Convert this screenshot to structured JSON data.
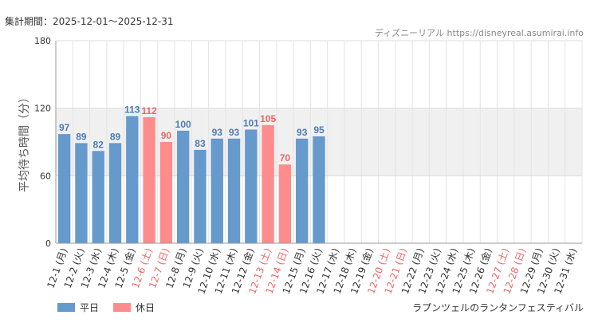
{
  "header": {
    "period": "集計期間：2025-12-01～2025-12-31",
    "source": "ディズニーリアル https://disneyreal.asumirai.info"
  },
  "footer": {
    "label": "ラプンツェルのランタンフェスティバル"
  },
  "legend": {
    "weekday": "平日",
    "holiday": "休日"
  },
  "colors": {
    "weekday": "#6699cc",
    "holiday": "#ff8c8c",
    "weekday_text": "#4a7cb5",
    "holiday_text": "#ee6666",
    "band": "#f0f0f0"
  },
  "chart_data": {
    "type": "bar",
    "ylabel": "平均待ち時間（分）",
    "ylim": [
      0,
      180
    ],
    "yticks": [
      0,
      60,
      120,
      180
    ],
    "shaded_band": [
      60,
      120
    ],
    "categories": [
      "12-1 (月)",
      "12-2 (火)",
      "12-3 (水)",
      "12-4 (木)",
      "12-5 (金)",
      "12-6 (土)",
      "12-7 (日)",
      "12-8 (月)",
      "12-9 (火)",
      "12-10 (水)",
      "12-11 (木)",
      "12-12 (金)",
      "12-13 (土)",
      "12-14 (日)",
      "12-15 (月)",
      "12-16 (火)",
      "12-17 (水)",
      "12-18 (木)",
      "12-19 (金)",
      "12-20 (土)",
      "12-21 (日)",
      "12-22 (月)",
      "12-23 (火)",
      "12-24 (水)",
      "12-25 (木)",
      "12-26 (金)",
      "12-27 (土)",
      "12-28 (日)",
      "12-29 (月)",
      "12-30 (火)",
      "12-31 (水)"
    ],
    "holiday": [
      false,
      false,
      false,
      false,
      false,
      true,
      true,
      false,
      false,
      false,
      false,
      false,
      true,
      true,
      false,
      false,
      false,
      false,
      false,
      true,
      true,
      false,
      false,
      false,
      false,
      false,
      true,
      true,
      false,
      false,
      false
    ],
    "values": [
      97,
      89,
      82,
      89,
      113,
      112,
      90,
      100,
      83,
      93,
      93,
      101,
      105,
      70,
      93,
      95,
      null,
      null,
      null,
      null,
      null,
      null,
      null,
      null,
      null,
      null,
      null,
      null,
      null,
      null,
      null
    ]
  }
}
